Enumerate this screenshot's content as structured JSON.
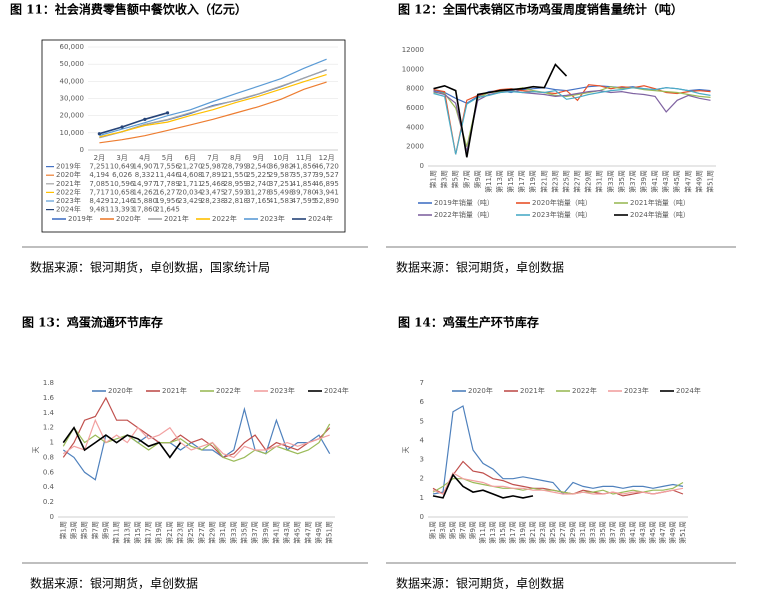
{
  "figures": [
    {
      "caption": "图 11：社会消费零售额中餐饮收入（亿元）",
      "source": "数据来源：银河期货，卓创数据，国家统计局",
      "chart_data": {
        "type": "line",
        "legend": "bottom",
        "grid": true,
        "categories": [
          "2月",
          "3月",
          "4月",
          "5月",
          "6月",
          "7月",
          "8月",
          "9月",
          "10月",
          "11月",
          "12月"
        ],
        "ylim": [
          0,
          60000
        ],
        "yticks": [
          0,
          {
            "value": 10000,
            "label": "10,000"
          },
          {
            "value": 20000,
            "label": "20,000"
          },
          {
            "value": 30000,
            "label": "30,000"
          },
          {
            "value": 40000,
            "label": "40,000"
          },
          {
            "value": 50000,
            "label": "50,000"
          },
          {
            "value": 60000,
            "label": "60,000"
          }
        ],
        "series": [
          {
            "name": "2019年",
            "color": "#4472c4",
            "values": [
              7251,
              10649,
              14907,
              17556,
              21270,
              25987,
              28799,
              32540,
              36982,
              41856,
              46720
            ],
            "value_labels": [
              "7,251",
              "10,649",
              "14,907",
              "17,556",
              "21,270",
              "25,987",
              "28,799",
              "32,540",
              "36,982",
              "41,856",
              "46,720"
            ]
          },
          {
            "name": "2020年",
            "color": "#ed7d31",
            "values": [
              4194,
              6026,
              8332,
              11446,
              14608,
              17891,
              21550,
              25225,
              29587,
              35377,
              39527
            ],
            "value_labels": [
              "4,194",
              "6,026",
              "8,332",
              "11,446",
              "14,608",
              "17,891",
              "21,550",
              "25,225",
              "29,587",
              "35,377",
              "39,527"
            ]
          },
          {
            "name": "2021年",
            "color": "#a5a5a5",
            "values": [
              7085,
              10596,
              14977,
              17789,
              21711,
              25468,
              28959,
              32740,
              37251,
              41854,
              46895
            ],
            "value_labels": [
              "7,085",
              "10,596",
              "14,977",
              "17,789",
              "21,711",
              "25,468",
              "28,959",
              "32,740",
              "37,251",
              "41,854",
              "46,895"
            ]
          },
          {
            "name": "2022年",
            "color": "#ffc000",
            "values": [
              7717,
              10658,
              14262,
              16277,
              20034,
              23475,
              27593,
              31278,
              35498,
              39780,
              43941
            ],
            "value_labels": [
              "7,717",
              "10,658",
              "14,262",
              "16,277",
              "20,034",
              "23,475",
              "27,593",
              "31,278",
              "35,498",
              "39,780",
              "43,941"
            ]
          },
          {
            "name": "2023年",
            "color": "#5b9bd5",
            "values": [
              8429,
              12146,
              15880,
              19956,
              23429,
              28238,
              32818,
              37165,
              41583,
              47595,
              52890
            ],
            "value_labels": [
              "8,429",
              "12,146",
              "15,880",
              "19,956",
              "23,429",
              "28,238",
              "32,818",
              "37,165",
              "41,583",
              "47,595",
              "52,890"
            ]
          },
          {
            "name": "2024年",
            "color": "#264478",
            "markers": true,
            "values": [
              9481,
              13393,
              17860,
              21645,
              null,
              null,
              null,
              null,
              null,
              null,
              null
            ],
            "value_labels": [
              "9,481",
              "13,393",
              "17,860",
              "21,645",
              null,
              null,
              null,
              null,
              null,
              null,
              null
            ]
          }
        ]
      }
    },
    {
      "caption": "图 12：全国代表销区市场鸡蛋周度销售量统计（吨）",
      "source": "数据来源：银河期货，卓创数据",
      "chart_data": {
        "type": "line",
        "legend": "bottom",
        "categories": [
          "第1周",
          "第3周",
          "第5周",
          "第7周",
          "第9周",
          "第11周",
          "第13周",
          "第15周",
          "第17周",
          "第19周",
          "第21周",
          "第23周",
          "第25周",
          "第27周",
          "第29周",
          "第31周",
          "第33周",
          "第35周",
          "第37周",
          "第39周",
          "第41周",
          "第43周",
          "第45周",
          "第47周",
          "第49周",
          "第51周"
        ],
        "ylim": [
          0,
          12000
        ],
        "yticks": [
          0,
          2000,
          4000,
          6000,
          8000,
          10000,
          12000
        ],
        "series": [
          {
            "name": "2019年销量（吨）",
            "color": "#4472c4",
            "values": [
              7800,
              7600,
              7000,
              6500,
              7200,
              7700,
              7800,
              7600,
              7900,
              8000,
              8100,
              7900,
              7800,
              8000,
              8200,
              8300,
              8200,
              8100,
              8200,
              8000,
              7900,
              8100,
              8000,
              7800,
              7900,
              7800
            ]
          },
          {
            "name": "2020年销量（吨）",
            "color": "#e8522a",
            "values": [
              7900,
              7700,
              1200,
              6800,
              7300,
              7600,
              7900,
              8000,
              7800,
              7700,
              7600,
              7500,
              7800,
              6800,
              8400,
              8300,
              8000,
              8200,
              8100,
              8300,
              8000,
              7600,
              7500,
              7700,
              7800,
              7700
            ]
          },
          {
            "name": "2021年销量（吨）",
            "color": "#9bbb59",
            "values": [
              7600,
              7500,
              6000,
              2000,
              7000,
              7600,
              7700,
              7800,
              8100,
              7800,
              7600,
              7300,
              7200,
              7400,
              7600,
              7800,
              8200,
              8000,
              8100,
              7900,
              7800,
              7700,
              7600,
              7400,
              7200,
              7100
            ]
          },
          {
            "name": "2022年销量（吨）",
            "color": "#8064a2",
            "values": [
              7700,
              7400,
              6500,
              1500,
              6800,
              7400,
              7600,
              7800,
              7600,
              7500,
              7400,
              7200,
              7300,
              7500,
              7700,
              7800,
              7600,
              7700,
              7500,
              7400,
              7200,
              5600,
              6800,
              7300,
              7000,
              6800
            ]
          },
          {
            "name": "2023年销量（吨）",
            "color": "#4bacc6",
            "values": [
              7500,
              7200,
              1200,
              6400,
              7100,
              7300,
              7600,
              7700,
              7600,
              7700,
              7600,
              7800,
              6900,
              7100,
              7400,
              7600,
              7800,
              7900,
              8100,
              8000,
              7900,
              8100,
              8000,
              7800,
              7500,
              7300
            ]
          },
          {
            "name": "2024年销量（吨）",
            "color": "#000000",
            "values": [
              8000,
              8300,
              7800,
              900,
              7400,
              7600,
              7800,
              7900,
              8000,
              8200,
              8100,
              10500,
              9300,
              null,
              null,
              null,
              null,
              null,
              null,
              null,
              null,
              null,
              null,
              null,
              null,
              null
            ]
          }
        ]
      }
    },
    {
      "caption": "图 13：鸡蛋流通环节库存",
      "source": "数据来源：银河期货，卓创数据",
      "chart_data": {
        "type": "line",
        "legend": "top",
        "ylabel": "天",
        "categories": [
          "第1周",
          "第3周",
          "第5周",
          "第7周",
          "第9周",
          "第11周",
          "第13周",
          "第15周",
          "第17周",
          "第19周",
          "第21周",
          "第23周",
          "第25周",
          "第27周",
          "第29周",
          "第31周",
          "第33周",
          "第35周",
          "第37周",
          "第39周",
          "第41周",
          "第43周",
          "第45周",
          "第47周",
          "第49周",
          "第51周"
        ],
        "ylim": [
          0,
          1.8
        ],
        "yticks": [
          0,
          0.2,
          0.4,
          0.6,
          0.8,
          1,
          1.2,
          1.4,
          1.6,
          1.8
        ],
        "series": [
          {
            "name": "2020年",
            "color": "#4f81bd",
            "values": [
              0.9,
              0.8,
              0.6,
              0.5,
              1.1,
              1.0,
              1.1,
              1.0,
              1.1,
              1.0,
              1.0,
              0.9,
              1.0,
              0.9,
              0.9,
              0.8,
              0.9,
              1.45,
              0.9,
              0.85,
              1.3,
              0.9,
              1.0,
              1.0,
              1.1,
              0.85
            ]
          },
          {
            "name": "2021年",
            "color": "#c0504d",
            "values": [
              0.8,
              1.0,
              1.3,
              1.35,
              1.6,
              1.3,
              1.3,
              1.2,
              1.1,
              1.0,
              1.0,
              1.1,
              1.0,
              1.05,
              0.95,
              0.8,
              0.85,
              1.0,
              1.1,
              0.9,
              1.0,
              0.95,
              0.9,
              1.0,
              1.05,
              1.2
            ]
          },
          {
            "name": "2022年",
            "color": "#9bbb59",
            "values": [
              0.95,
              1.2,
              1.0,
              1.1,
              1.0,
              1.05,
              1.1,
              1.0,
              0.9,
              1.0,
              1.0,
              1.05,
              0.95,
              0.9,
              1.0,
              0.8,
              0.75,
              0.8,
              0.9,
              0.85,
              0.95,
              0.9,
              0.85,
              0.9,
              1.0,
              1.25
            ]
          },
          {
            "name": "2023年",
            "color": "#f2a0a0",
            "values": [
              0.85,
              0.95,
              0.9,
              1.3,
              1.0,
              1.1,
              1.0,
              1.2,
              1.05,
              1.1,
              1.2,
              1.0,
              0.9,
              0.95,
              1.0,
              0.85,
              0.8,
              0.95,
              0.9,
              0.9,
              0.95,
              1.0,
              0.95,
              1.0,
              1.05,
              1.1
            ]
          },
          {
            "name": "2024年",
            "color": "#000000",
            "values": [
              1.0,
              1.2,
              0.9,
              1.0,
              1.1,
              1.0,
              1.1,
              1.05,
              0.95,
              1.0,
              0.8,
              1.0,
              null,
              null,
              null,
              null,
              null,
              null,
              null,
              null,
              null,
              null,
              null,
              null,
              null,
              null
            ]
          }
        ]
      }
    },
    {
      "caption": "图 14：鸡蛋生产环节库存",
      "source": "数据来源：银河期货，卓创数据",
      "chart_data": {
        "type": "line",
        "legend": "top",
        "ylabel": "天",
        "categories": [
          "第1周",
          "第3周",
          "第5周",
          "第7周",
          "第9周",
          "第11周",
          "第13周",
          "第15周",
          "第17周",
          "第19周",
          "第21周",
          "第23周",
          "第25周",
          "第27周",
          "第29周",
          "第31周",
          "第33周",
          "第35周",
          "第37周",
          "第39周",
          "第41周",
          "第43周",
          "第45周",
          "第47周",
          "第49周",
          "第51周"
        ],
        "ylim": [
          0,
          7
        ],
        "yticks": [
          0,
          1,
          2,
          3,
          4,
          5,
          6,
          7
        ],
        "series": [
          {
            "name": "2020年",
            "color": "#4f81bd",
            "values": [
              1.2,
              1.3,
              5.5,
              5.8,
              3.5,
              2.8,
              2.5,
              2.0,
              2.0,
              2.1,
              2.0,
              1.9,
              1.8,
              1.2,
              1.8,
              1.6,
              1.5,
              1.6,
              1.6,
              1.5,
              1.6,
              1.6,
              1.5,
              1.6,
              1.7,
              1.6
            ]
          },
          {
            "name": "2021年",
            "color": "#c0504d",
            "values": [
              1.5,
              1.2,
              2.2,
              2.9,
              2.4,
              2.3,
              2.0,
              1.9,
              1.7,
              1.6,
              1.5,
              1.5,
              1.4,
              1.3,
              1.2,
              1.4,
              1.3,
              1.2,
              1.3,
              1.1,
              1.2,
              1.3,
              1.2,
              1.3,
              1.4,
              1.2
            ]
          },
          {
            "name": "2022年",
            "color": "#9bbb59",
            "values": [
              1.3,
              1.6,
              2.0,
              2.0,
              1.8,
              1.7,
              1.6,
              1.5,
              1.5,
              1.4,
              1.5,
              1.4,
              1.4,
              1.3,
              1.2,
              1.3,
              1.3,
              1.4,
              1.2,
              1.3,
              1.4,
              1.3,
              1.4,
              1.4,
              1.5,
              1.8
            ]
          },
          {
            "name": "2023年",
            "color": "#f2a0a0",
            "values": [
              1.4,
              1.2,
              2.3,
              2.0,
              1.9,
              1.8,
              1.6,
              1.6,
              1.5,
              1.5,
              1.4,
              1.4,
              1.3,
              1.2,
              1.2,
              1.3,
              1.2,
              1.2,
              1.3,
              1.2,
              1.3,
              1.3,
              1.2,
              1.3,
              1.4,
              1.5
            ]
          },
          {
            "name": "2024年",
            "color": "#000000",
            "values": [
              1.1,
              1.0,
              2.2,
              1.6,
              1.3,
              1.4,
              1.2,
              1.0,
              1.1,
              1.0,
              1.1,
              null,
              null,
              null,
              null,
              null,
              null,
              null,
              null,
              null,
              null,
              null,
              null,
              null,
              null,
              null
            ]
          }
        ]
      }
    }
  ]
}
